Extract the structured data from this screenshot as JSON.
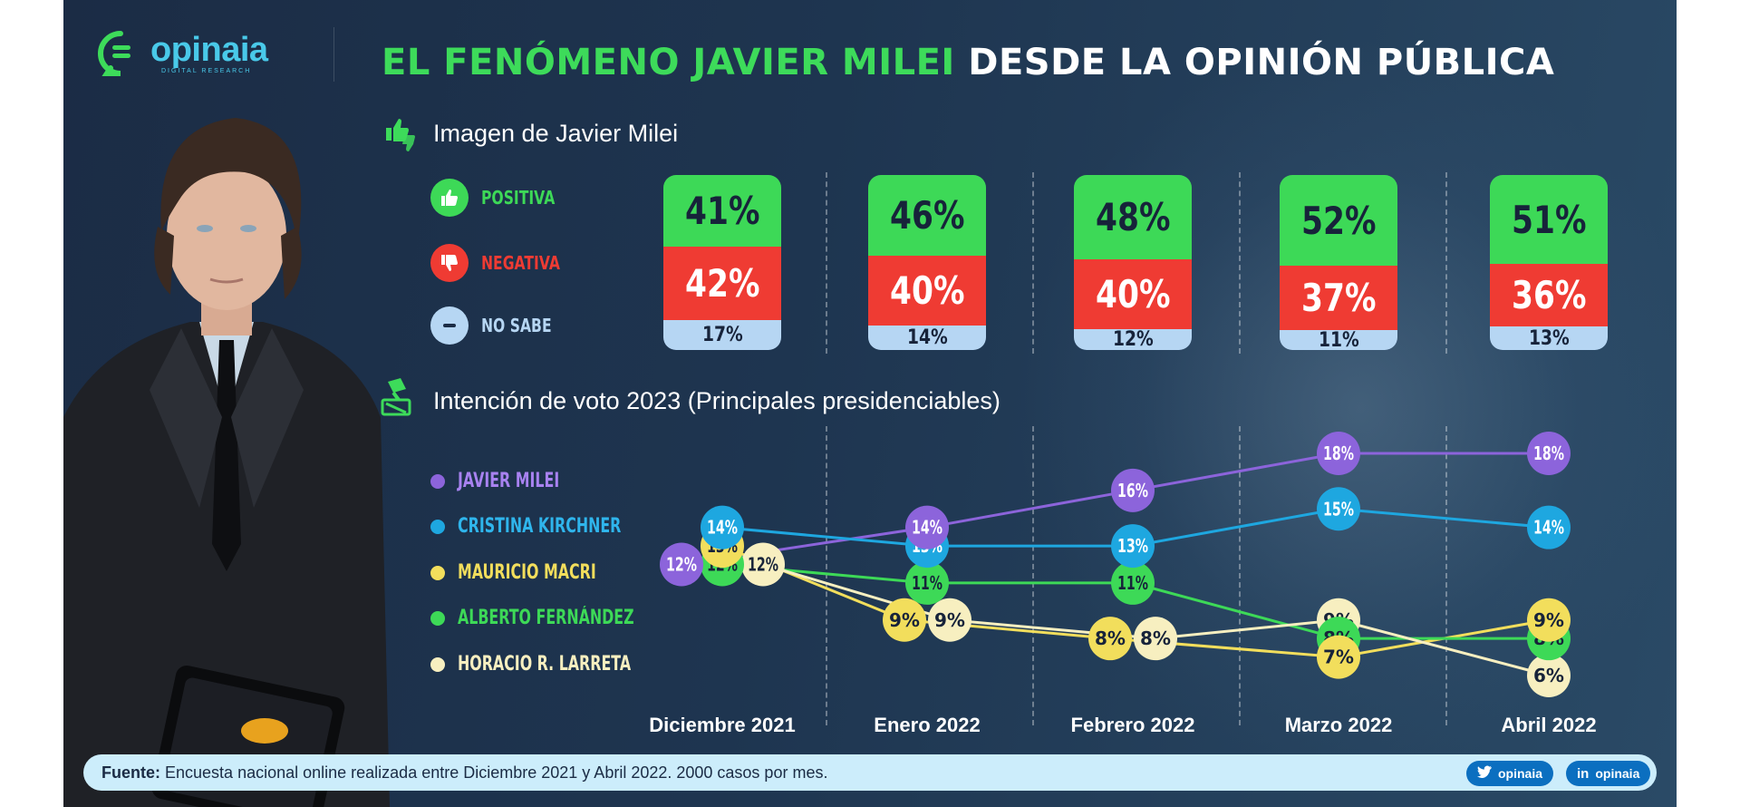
{
  "brand": {
    "name": "opinaia",
    "tagline": "DIGITAL RESEARCH"
  },
  "title": {
    "highlight": "EL FENÓMENO JAVIER MILEI",
    "rest": "DESDE LA OPINIÓN PÚBLICA"
  },
  "sections": {
    "image_title": "Imagen de Javier Milei",
    "vote_title": "Intención de voto 2023 (Principales presidenciables)"
  },
  "image_legend": [
    {
      "label": "POSITIVA",
      "color": "#3dd957",
      "icon": "thumbs-up-icon"
    },
    {
      "label": "NEGATIVA",
      "color": "#ef3b33",
      "icon": "thumbs-down-icon"
    },
    {
      "label": "NO SABE",
      "color": "#b6d6f3",
      "icon": "minus-icon"
    }
  ],
  "months": [
    "Diciembre 2021",
    "Enero 2022",
    "Febrero 2022",
    "Marzo 2022",
    "Abril  2022"
  ],
  "image_cards": [
    {
      "pos": "41%",
      "neg": "42%",
      "ns": "17%"
    },
    {
      "pos": "46%",
      "neg": "40%",
      "ns": "14%"
    },
    {
      "pos": "48%",
      "neg": "40%",
      "ns": "12%"
    },
    {
      "pos": "52%",
      "neg": "37%",
      "ns": "11%"
    },
    {
      "pos": "51%",
      "neg": "36%",
      "ns": "13%"
    }
  ],
  "chart_data": [
    {
      "type": "bar",
      "title": "Imagen de Javier Milei",
      "categories": [
        "Diciembre 2021",
        "Enero 2022",
        "Febrero 2022",
        "Marzo 2022",
        "Abril 2022"
      ],
      "stacked": true,
      "series": [
        {
          "name": "POSITIVA",
          "color": "#3dd957",
          "values": [
            41,
            46,
            48,
            52,
            51
          ]
        },
        {
          "name": "NEGATIVA",
          "color": "#ef3b33",
          "values": [
            42,
            40,
            40,
            37,
            36
          ]
        },
        {
          "name": "NO SABE",
          "color": "#b6d6f3",
          "values": [
            17,
            14,
            12,
            11,
            13
          ]
        }
      ],
      "unit": "%"
    },
    {
      "type": "line",
      "title": "Intención de voto 2023 (Principales presidenciables)",
      "categories": [
        "Diciembre 2021",
        "Enero 2022",
        "Febrero 2022",
        "Marzo 2022",
        "Abril 2022"
      ],
      "ylim": [
        5,
        19
      ],
      "unit": "%",
      "series": [
        {
          "name": "JAVIER MILEI",
          "color": "#8c64db",
          "text": "#ffffff",
          "values": [
            12,
            14,
            16,
            18,
            18
          ]
        },
        {
          "name": "CRISTINA KIRCHNER",
          "color": "#1ea7e0",
          "text": "#ffffff",
          "values": [
            14,
            13,
            13,
            15,
            14
          ]
        },
        {
          "name": "MAURICIO MACRI",
          "color": "#f2de5c",
          "text": "#17233a",
          "values": [
            13,
            9,
            8,
            7,
            9
          ]
        },
        {
          "name": "ALBERTO FERNÁNDEZ",
          "color": "#3dd957",
          "text": "#17233a",
          "values": [
            12,
            11,
            11,
            8,
            8
          ]
        },
        {
          "name": "HORACIO R. LARRETA",
          "color": "#f7efc0",
          "text": "#17233a",
          "values": [
            12,
            9,
            8,
            9,
            6
          ]
        }
      ]
    }
  ],
  "footer": {
    "source_label": "Fuente:",
    "source_text": "Encuesta nacional online realizada entre Diciembre 2021 y Abril 2022. 2000 casos por mes.",
    "twitter": "opinaia",
    "linkedin": "opinaia"
  }
}
